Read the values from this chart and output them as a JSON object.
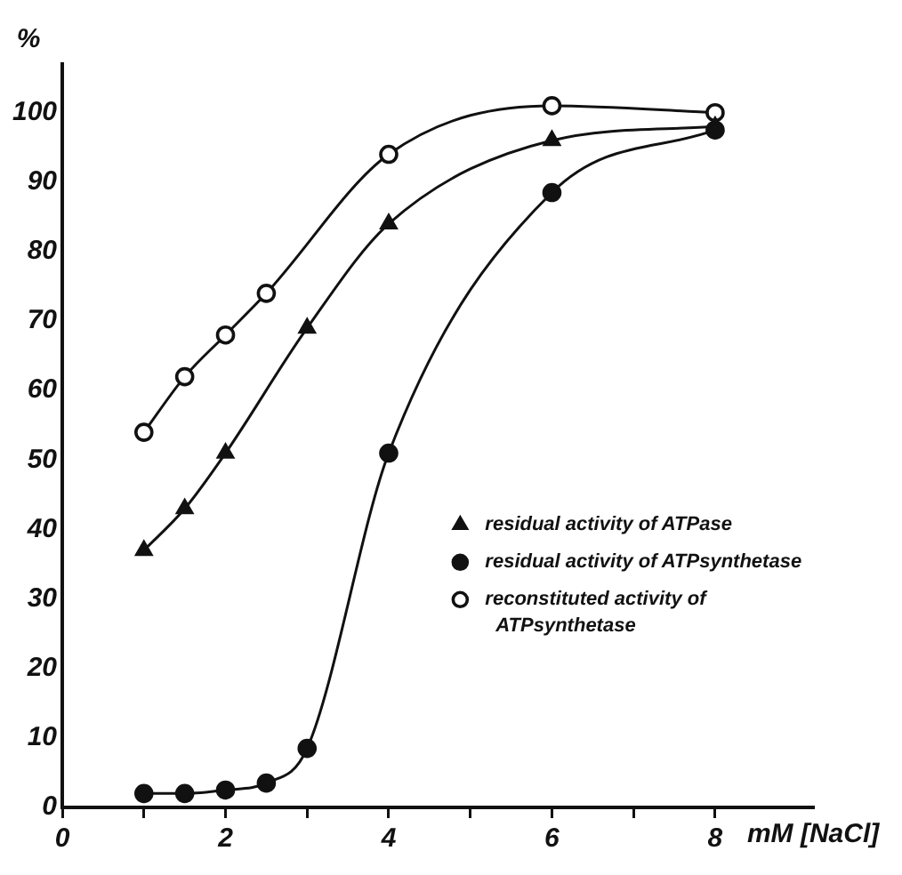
{
  "chart_data": {
    "type": "line",
    "xlabel": "mM [NaCl]",
    "ylabel": "%",
    "x": [
      1,
      1.5,
      2,
      3,
      4,
      6,
      8
    ],
    "xlim": [
      0,
      9.2
    ],
    "xticks": [
      0,
      {
        "value": 1,
        "label": null
      },
      2,
      {
        "value": 3,
        "label": null
      },
      4,
      {
        "value": 5,
        "label": null
      },
      6,
      {
        "value": 7,
        "label": null
      },
      8
    ],
    "ylim": [
      0,
      107
    ],
    "yticks": [
      0,
      10,
      20,
      30,
      40,
      50,
      60,
      70,
      80,
      90,
      100
    ],
    "grid": false,
    "legend": "bottom right",
    "line_style": "solid",
    "series": [
      {
        "name": "residual activity of ATPase",
        "color": "#111111",
        "marker": "triangle",
        "values": [
          37,
          43,
          51,
          69,
          84,
          96,
          98
        ]
      },
      {
        "name": "residual activity of ATPsynthetase",
        "color": "#111111",
        "marker": "circle",
        "x": [
          1,
          1.5,
          2,
          2.5,
          3,
          4,
          6,
          8
        ],
        "values": [
          2,
          2,
          2.5,
          3.5,
          8.5,
          51,
          88.5,
          97.5
        ]
      },
      {
        "name": "reconstituted activity of ATPsynthetase",
        "color": "#111111",
        "marker": "open-circle",
        "x": [
          1,
          1.5,
          2,
          2.5,
          4,
          6,
          8
        ],
        "values": [
          54,
          62,
          68,
          74,
          94,
          101,
          100
        ]
      }
    ]
  }
}
